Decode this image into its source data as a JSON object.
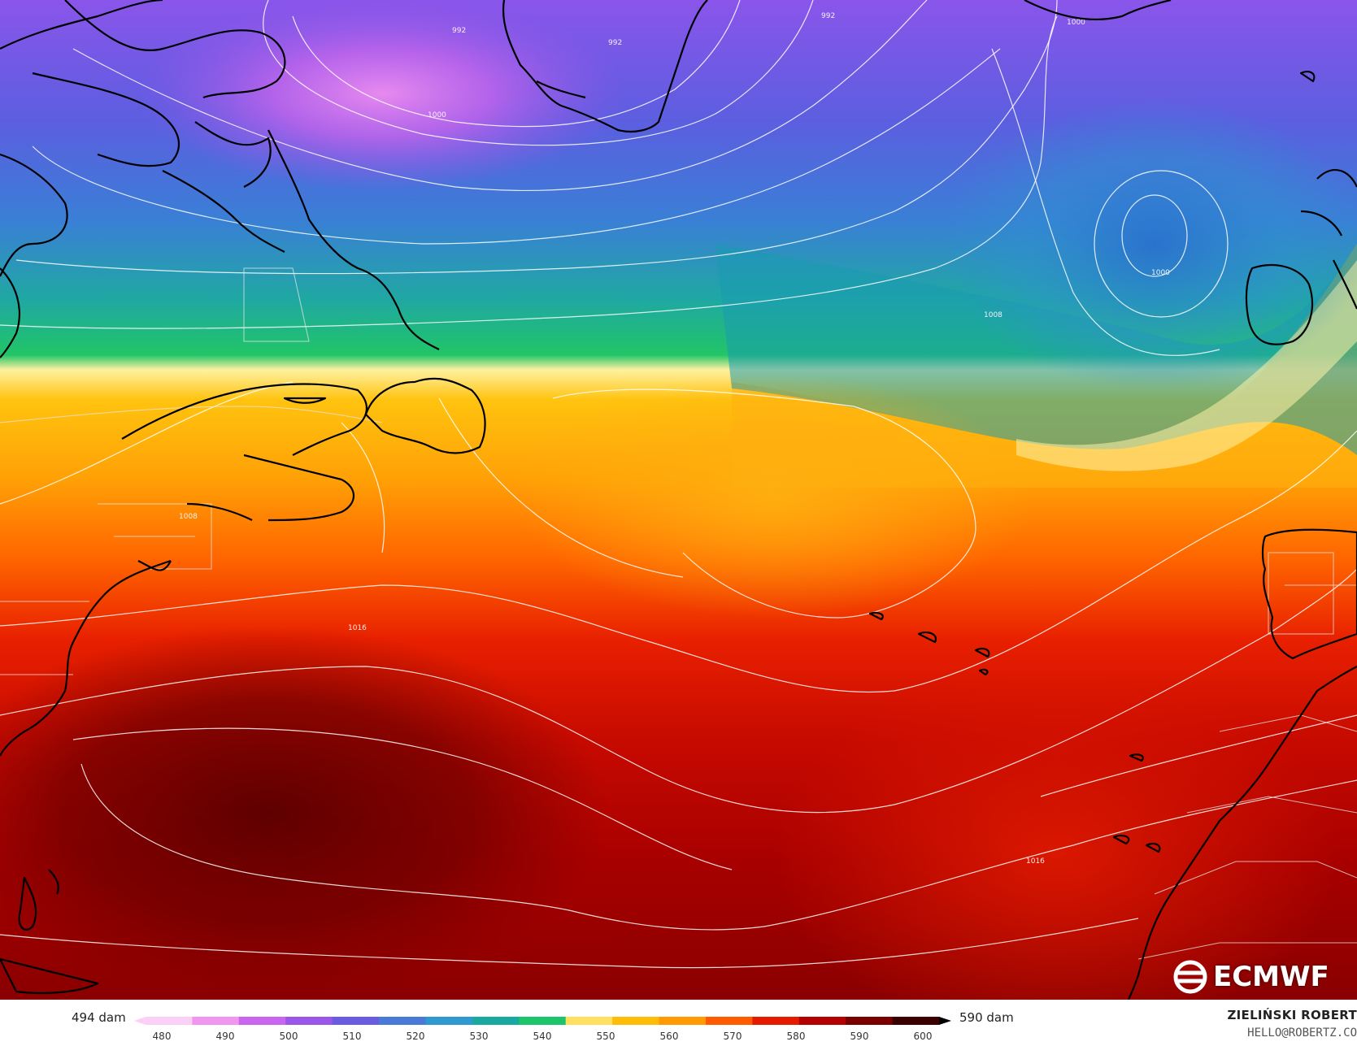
{
  "legend": {
    "min_label": "494 dam",
    "max_label": "590 dam",
    "ticks": [
      "480",
      "490",
      "500",
      "510",
      "520",
      "530",
      "540",
      "550",
      "560",
      "570",
      "580",
      "590",
      "600"
    ],
    "scale_min": 480,
    "scale_max": 600,
    "colors": [
      "#fbd0f6",
      "#f095f0",
      "#c965ee",
      "#9b55e8",
      "#6a5ce0",
      "#4a7ad8",
      "#2e9ad0",
      "#1aa9a0",
      "#1cc46a",
      "#ffe060",
      "#ffbd0a",
      "#ff9a05",
      "#ff5a00",
      "#e61a00",
      "#b30000",
      "#7a0000",
      "#3a0000"
    ]
  },
  "isobar_labels": [
    "992",
    "992",
    "992",
    "1000",
    "1000",
    "1000",
    "1008",
    "1008",
    "1016",
    "1016"
  ],
  "logo": {
    "text": "ECMWF",
    "icon": "ecmwf-logo-icon"
  },
  "author": {
    "name": "ZIELIŃSKI ROBERT",
    "email": "HELLO@ROBERTZ.CO"
  }
}
